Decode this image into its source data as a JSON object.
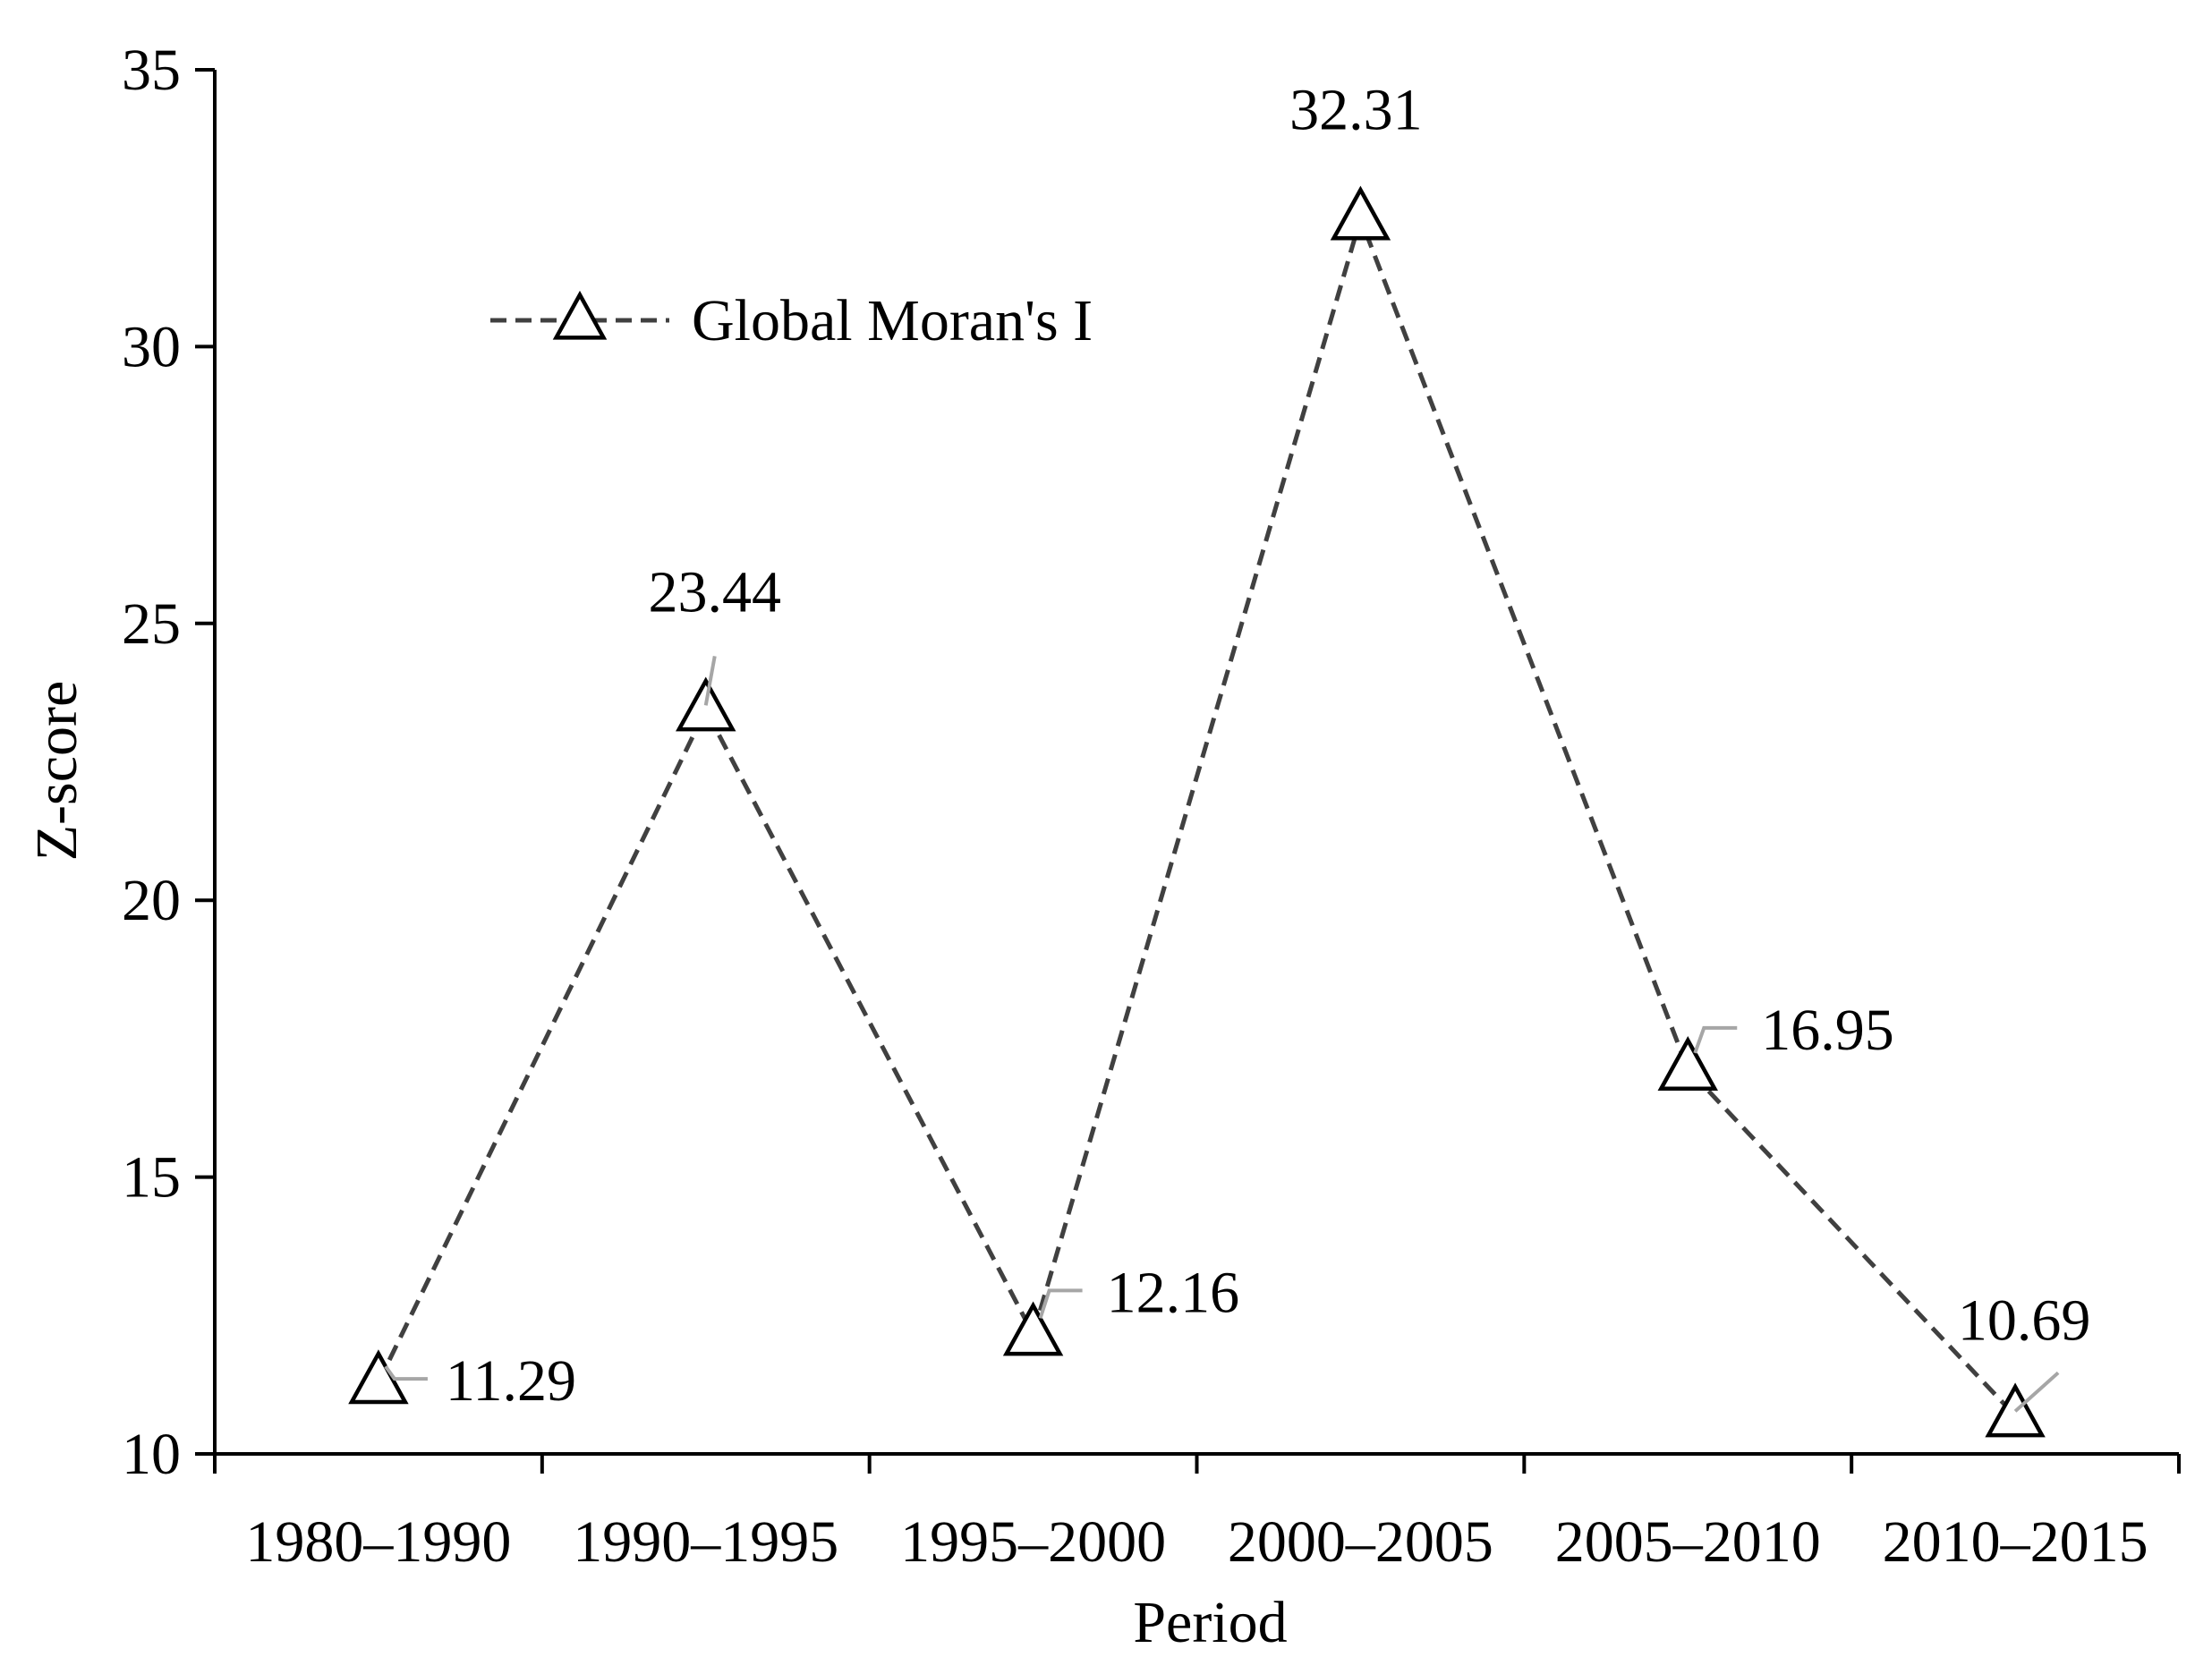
{
  "chart_data": {
    "type": "line",
    "title": "",
    "xlabel": "Period",
    "ylabel": "Z-score",
    "categories": [
      "1980–1990",
      "1990–1995",
      "1995–2000",
      "2000–2005",
      "2005–2010",
      "2010–2015"
    ],
    "series": [
      {
        "name": "Global Moran's I",
        "values": [
          11.29,
          23.44,
          12.16,
          32.31,
          16.95,
          10.69
        ],
        "marker": "open-triangle",
        "line_style": "dashed",
        "color": "#404040"
      }
    ],
    "data_labels": [
      "11.29",
      "23.44",
      "12.16",
      "32.31",
      "16.95",
      "10.69"
    ],
    "yticks": [
      "10",
      "15",
      "20",
      "25",
      "30",
      "35"
    ],
    "ylim": [
      10,
      35
    ],
    "grid": false,
    "legend_position": "top-left"
  }
}
